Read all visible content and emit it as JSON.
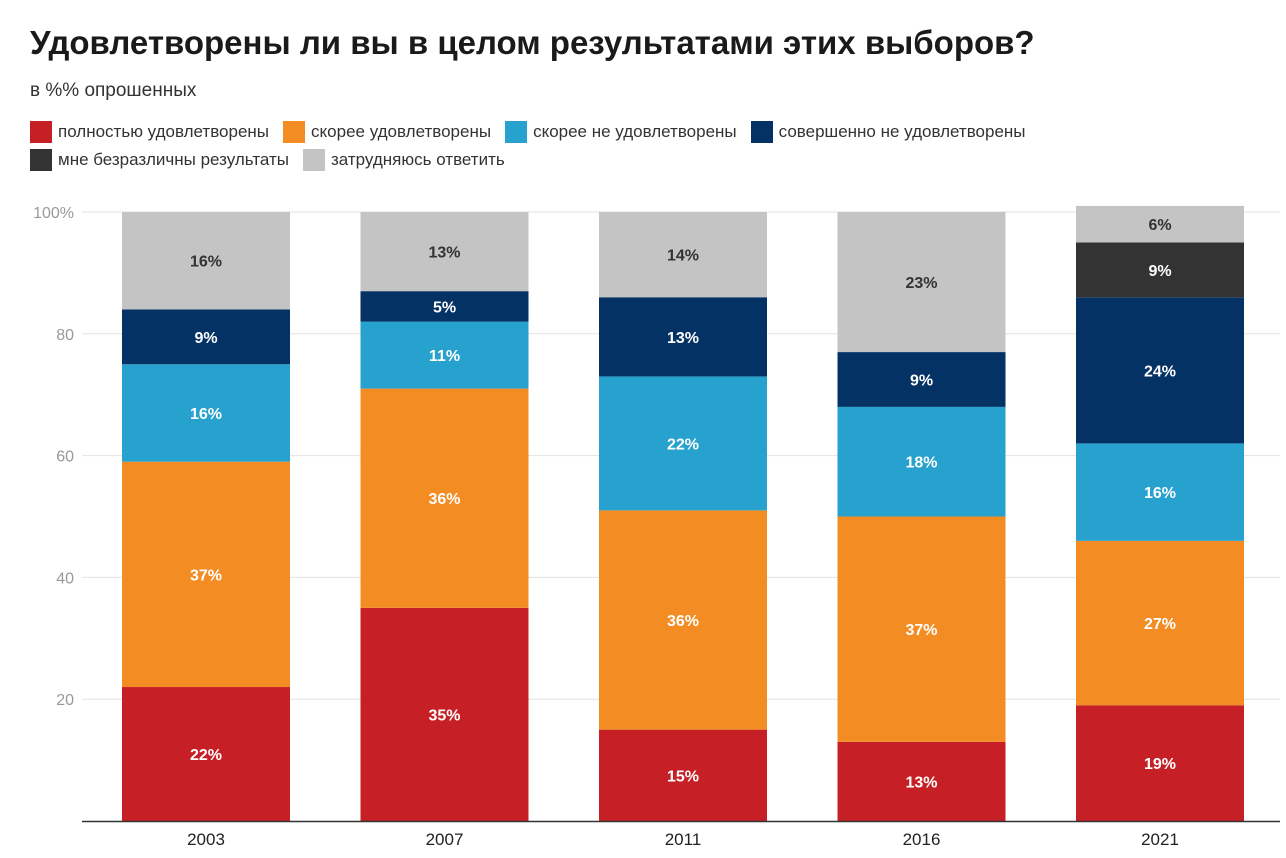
{
  "chart_data": {
    "type": "bar",
    "stacked": true,
    "title": "Удовлетворены ли вы в целом результатами этих выборов?",
    "subtitle": "в %% опрошенных",
    "xlabel": "",
    "ylabel": "",
    "ylim": [
      0,
      100
    ],
    "yticks": [
      "20",
      "40",
      "60",
      "80",
      "100%"
    ],
    "ytick_values": [
      20,
      40,
      60,
      80,
      100
    ],
    "categories": [
      "2003",
      "2007",
      "2011",
      "2016",
      "2021"
    ],
    "grid": true,
    "legend_position": "top-left",
    "series": [
      {
        "name": "полностью удовлетворены",
        "color": "#c62026",
        "label_color": "#ffffff",
        "values": [
          22,
          35,
          15,
          13,
          19
        ],
        "labels": [
          "22%",
          "35%",
          "15%",
          "13%",
          "19%"
        ]
      },
      {
        "name": "скорее удовлетворены",
        "color": "#f48c24",
        "label_color": "#ffffff",
        "values": [
          37,
          36,
          36,
          37,
          27
        ],
        "labels": [
          "37%",
          "36%",
          "36%",
          "37%",
          "27%"
        ]
      },
      {
        "name": "скорее не удовлетворены",
        "color": "#27a1cd",
        "label_color": "#ffffff",
        "values": [
          16,
          11,
          22,
          18,
          16
        ],
        "labels": [
          "16%",
          "11%",
          "22%",
          "18%",
          "16%"
        ]
      },
      {
        "name": "совершенно не удовлетворены",
        "color": "#053264",
        "label_color": "#ffffff",
        "values": [
          9,
          5,
          13,
          9,
          24
        ],
        "labels": [
          "9%",
          "5%",
          "13%",
          "9%",
          "24%"
        ]
      },
      {
        "name": "мне безразличны результаты",
        "color": "#333333",
        "label_color": "#ffffff",
        "values": [
          0,
          0,
          0,
          0,
          9
        ],
        "labels": [
          "",
          "",
          "",
          "",
          "9%"
        ]
      },
      {
        "name": "затрудняюсь ответить",
        "color": "#c4c4c4",
        "label_color": "#333333",
        "values": [
          16,
          13,
          14,
          23,
          6
        ],
        "labels": [
          "16%",
          "13%",
          "14%",
          "23%",
          "6%"
        ]
      }
    ]
  }
}
